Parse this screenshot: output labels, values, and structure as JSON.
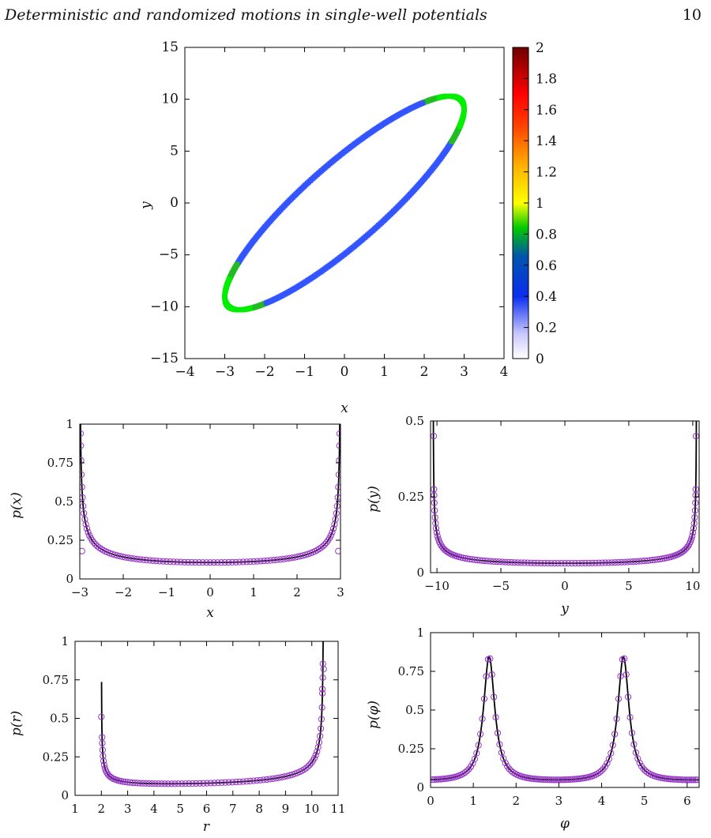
{
  "header": {
    "title": "Deterministic and randomized motions in single-well potentials",
    "page_number": "10"
  },
  "chart_data": [
    {
      "type": "heatmap",
      "xlabel": "x",
      "ylabel": "y",
      "xlim": [
        -4,
        4
      ],
      "ylim": [
        -15,
        15
      ],
      "x_ticks": [
        "−4",
        "−3",
        "−2",
        "−1",
        "0",
        "1",
        "2",
        "3",
        "4"
      ],
      "y_ticks": [
        "−15",
        "−10",
        "−5",
        "0",
        "5",
        "10",
        "15"
      ],
      "colorbar": {
        "range": [
          0,
          2
        ],
        "ticks": [
          "0",
          "0.2",
          "0.4",
          "0.6",
          "0.8",
          "1",
          "1.2",
          "1.4",
          "1.6",
          "1.8",
          "2"
        ],
        "colors": [
          "#ffffff",
          "#0a2df0",
          "#00c800",
          "#ffff00",
          "#ff8c00",
          "#ff0000",
          "#6e0000"
        ]
      },
      "ellipse": {
        "A": 3.0,
        "B": 10.3,
        "phase_shift": 0.5
      },
      "colors": {
        "low": "#3355ff",
        "mid": "#22bb22",
        "high": "#00ee00"
      }
    },
    {
      "type": "line",
      "xlabel": "x",
      "ylabel": "p(x)",
      "xlim": [
        -3,
        3
      ],
      "ylim": [
        0,
        1
      ],
      "x_ticks": [
        "−3",
        "−2",
        "−1",
        "0",
        "1",
        "2",
        "3"
      ],
      "y_ticks": [
        "0",
        "0.25",
        "0.5",
        "0.75",
        "1"
      ],
      "model": {
        "kind": "arcsine",
        "A": 3.0
      },
      "end_points": [
        {
          "x": -2.95,
          "y": 0.18
        },
        {
          "x": 2.95,
          "y": 0.18
        }
      ],
      "colors": {
        "marker": "#9933cc",
        "line": "#000000"
      }
    },
    {
      "type": "line",
      "xlabel": "y",
      "ylabel": "p(y)",
      "xlim": [
        -10.5,
        10.5
      ],
      "ylim": [
        0,
        0.5
      ],
      "x_ticks": [
        "−10",
        "−5",
        "0",
        "5",
        "10"
      ],
      "y_ticks": [
        "0",
        "0.25",
        "0.5"
      ],
      "model": {
        "kind": "arcsine",
        "A": 10.3
      },
      "end_points": [
        {
          "x": -10.25,
          "y": 0.45
        },
        {
          "x": 10.25,
          "y": 0.45
        }
      ],
      "colors": {
        "marker": "#9933cc",
        "line": "#000000"
      }
    },
    {
      "type": "line",
      "xlabel": "r",
      "ylabel": "p(r)",
      "xlim": [
        1,
        11
      ],
      "ylim": [
        0,
        1
      ],
      "x_ticks": [
        "1",
        "2",
        "3",
        "4",
        "5",
        "6",
        "7",
        "8",
        "9",
        "10",
        "11"
      ],
      "y_ticks": [
        "0",
        "0.25",
        "0.5",
        "0.75",
        "1"
      ],
      "model": {
        "kind": "radial",
        "a": 2.0,
        "b": 10.45
      },
      "end_points": [
        {
          "x": 2.0,
          "y": 0.51
        },
        {
          "x": 10.4,
          "y": 0.69
        },
        {
          "x": 10.45,
          "y": 0.82
        }
      ],
      "colors": {
        "marker": "#9933cc",
        "line": "#000000"
      }
    },
    {
      "type": "line",
      "xlabel": "φ",
      "ylabel": "p(φ)",
      "xlim": [
        0,
        6.28
      ],
      "ylim": [
        0,
        1
      ],
      "x_ticks": [
        "0",
        "1",
        "2",
        "3",
        "4",
        "5",
        "6"
      ],
      "y_ticks": [
        "0",
        "0.25",
        "0.5",
        "0.75",
        "1"
      ],
      "model": {
        "kind": "angular",
        "peaks": [
          1.37,
          4.51
        ],
        "peak_value": 0.84,
        "base": 0.03
      },
      "colors": {
        "marker": "#9933cc",
        "line": "#000000"
      }
    }
  ]
}
